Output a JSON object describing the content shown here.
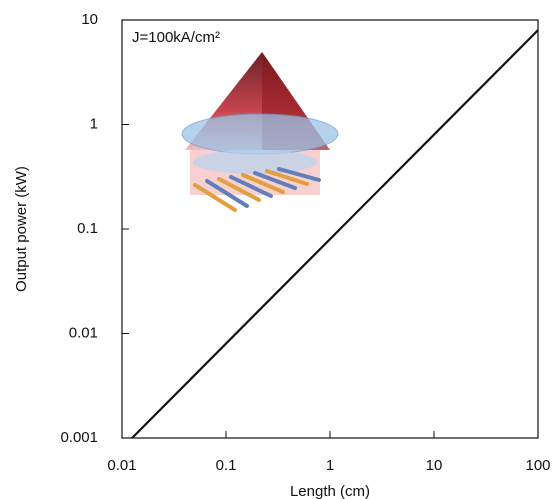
{
  "chart_data": {
    "type": "line",
    "x_label": "Length (cm)",
    "y_label": "Output power (kW)",
    "annotation": "J=100kA/cm²",
    "log_x": true,
    "log_y": true,
    "series": [
      {
        "name": "J=100kA/cm²",
        "color": "#111111",
        "x": [
          0.0125,
          100
        ],
        "values": [
          0.001,
          8
        ]
      }
    ],
    "xlim": [
      0.01,
      100
    ],
    "ylim": [
      0.001,
      10
    ],
    "xticks": [
      0.01,
      0.1,
      1,
      10,
      100
    ],
    "yticks": [
      0.001,
      0.01,
      0.1,
      1,
      10
    ]
  }
}
